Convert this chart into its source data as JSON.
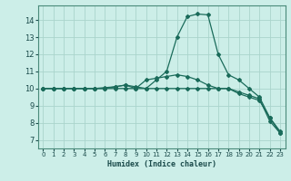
{
  "xlabel": "Humidex (Indice chaleur)",
  "xlim": [
    -0.5,
    23.5
  ],
  "ylim": [
    6.5,
    14.85
  ],
  "yticks": [
    7,
    8,
    9,
    10,
    11,
    12,
    13,
    14
  ],
  "xticks": [
    0,
    1,
    2,
    3,
    4,
    5,
    6,
    7,
    8,
    9,
    10,
    11,
    12,
    13,
    14,
    15,
    16,
    17,
    18,
    19,
    20,
    21,
    22,
    23
  ],
  "background_color": "#cceee8",
  "grid_color": "#aad4cc",
  "line_color": "#1a6b5a",
  "series1": [
    10.0,
    10.0,
    10.0,
    10.0,
    10.0,
    10.0,
    10.05,
    10.1,
    10.2,
    10.1,
    10.0,
    10.5,
    11.0,
    13.0,
    14.2,
    14.35,
    14.3,
    12.0,
    10.8,
    10.5,
    10.0,
    9.5,
    8.3,
    7.5
  ],
  "series2": [
    10.0,
    10.0,
    10.0,
    10.0,
    10.0,
    10.0,
    10.0,
    10.1,
    10.2,
    10.0,
    10.5,
    10.6,
    10.7,
    10.8,
    10.7,
    10.5,
    10.2,
    10.0,
    10.0,
    9.8,
    9.6,
    9.4,
    8.1,
    7.4
  ],
  "series3": [
    10.0,
    10.0,
    10.0,
    10.0,
    10.0,
    10.0,
    10.0,
    10.0,
    10.0,
    10.0,
    10.0,
    10.0,
    10.0,
    10.0,
    10.0,
    10.0,
    10.0,
    10.0,
    10.0,
    9.7,
    9.5,
    9.3,
    8.3,
    7.4
  ]
}
